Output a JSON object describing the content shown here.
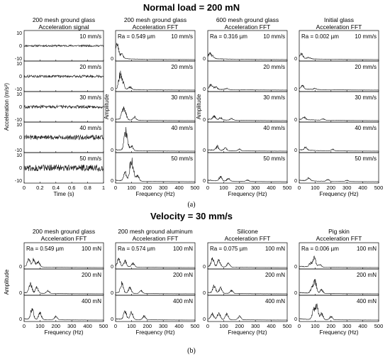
{
  "figure": {
    "part_a": {
      "heading": "Normal load = 200 mN",
      "caption": "(a)",
      "columns": [
        {
          "title1": "200 mesh ground glass",
          "title2": "Acceleration signal"
        },
        {
          "title1": "200 mesh ground glass",
          "title2": "Acceleration FFT",
          "ra": "Ra = 0.549 µm"
        },
        {
          "title1": "600 mesh ground glass",
          "title2": "Acceleration FFT",
          "ra": "Ra = 0.316 µm"
        },
        {
          "title1": "Initial glass",
          "title2": "Acceleration FFT",
          "ra": "Ra = 0.002 µm"
        }
      ],
      "row_labels": [
        "10 mm/s",
        "20 mm/s",
        "30 mm/s",
        "40 mm/s",
        "50 mm/s"
      ],
      "ylabel_signal": "Acceleration (m/s²)",
      "ylabel_fft": "Amplitude",
      "xlabel_signal": "Time (s)",
      "xlabel_fft": "Frequency (Hz)"
    },
    "part_b": {
      "heading": "Velocity = 30 mm/s",
      "caption": "(b)",
      "columns": [
        {
          "title1": "200 mesh ground glass",
          "title2": "Acceleration FFT",
          "ra": "Ra = 0.549 µm"
        },
        {
          "title1": "200 mesh ground aluminum",
          "title2": "Acceleration FFT",
          "ra": "Ra = 0.574 µm"
        },
        {
          "title1": "Silicone",
          "title2": "Acceleration FFT",
          "ra": "Ra = 0.075 µm"
        },
        {
          "title1": "Pig skin",
          "title2": "Acceleration FFT",
          "ra": "Ra = 0.006 µm"
        }
      ],
      "row_labels": [
        "100 mN",
        "200 mN",
        "400 mN"
      ],
      "ylabel_fft": "Amplitude",
      "xlabel_fft": "Frequency (Hz)"
    }
  },
  "chart_data": [
    {
      "type": "line",
      "panel": "a-signal",
      "xlabel": "Time (s)",
      "ylabel": "Acceleration (m/s²)",
      "xlim": [
        0,
        1
      ],
      "ylim": [
        -10,
        10
      ],
      "x_ticks": [
        "0",
        "0.2",
        "0.4",
        "0.6",
        "0.8",
        "1"
      ],
      "y_ticks": [
        "10",
        "0",
        "-10"
      ],
      "series": [
        {
          "name": "10 mm/s",
          "amplitude": 0.6
        },
        {
          "name": "20 mm/s",
          "amplitude": 0.8
        },
        {
          "name": "30 mm/s",
          "amplitude": 1.0
        },
        {
          "name": "40 mm/s",
          "amplitude": 1.6
        },
        {
          "name": "50 mm/s",
          "amplitude": 2.2
        }
      ]
    },
    {
      "type": "line",
      "panel": "a-fft",
      "xlabel": "Frequency (Hz)",
      "ylabel": "Amplitude",
      "xlim": [
        0,
        500
      ],
      "x_ticks": [
        "0",
        "100",
        "200",
        "300",
        "400",
        "500"
      ],
      "columns": [
        {
          "material": "200 mesh ground glass",
          "series": [
            {
              "name": "10 mm/s",
              "peaks": [
                [
                  5,
                  0.5
                ],
                [
                  15,
                  0.32
                ],
                [
                  40,
                  0.18
                ]
              ]
            },
            {
              "name": "20 mm/s",
              "peaks": [
                [
                  28,
                  0.62
                ],
                [
                  45,
                  0.3
                ],
                [
                  90,
                  0.12
                ]
              ]
            },
            {
              "name": "30 mm/s",
              "peaks": [
                [
                  45,
                  0.4
                ],
                [
                  60,
                  0.32
                ],
                [
                  120,
                  0.14
                ]
              ]
            },
            {
              "name": "40 mm/s",
              "peaks": [
                [
                  60,
                  0.55
                ],
                [
                  70,
                  0.45
                ],
                [
                  100,
                  0.22
                ]
              ]
            },
            {
              "name": "50 mm/s",
              "peaks": [
                [
                  95,
                  0.72
                ],
                [
                  110,
                  0.55
                ],
                [
                  60,
                  0.38
                ],
                [
                  140,
                  0.25
                ]
              ]
            }
          ]
        },
        {
          "material": "600 mesh ground glass",
          "series": [
            {
              "name": "10 mm/s",
              "peaks": [
                [
                  10,
                  0.2
                ],
                [
                  30,
                  0.12
                ]
              ]
            },
            {
              "name": "20 mm/s",
              "peaks": [
                [
                  20,
                  0.2
                ],
                [
                  50,
                  0.1
                ],
                [
                  120,
                  0.06
                ]
              ]
            },
            {
              "name": "30 mm/s",
              "peaks": [
                [
                  40,
                  0.16
                ],
                [
                  80,
                  0.1
                ],
                [
                  150,
                  0.07
                ]
              ]
            },
            {
              "name": "40 mm/s",
              "peaks": [
                [
                  60,
                  0.18
                ],
                [
                  110,
                  0.12
                ],
                [
                  200,
                  0.08
                ]
              ]
            },
            {
              "name": "50 mm/s",
              "peaks": [
                [
                  80,
                  0.18
                ],
                [
                  130,
                  0.12
                ],
                [
                  250,
                  0.06
                ]
              ]
            }
          ]
        },
        {
          "material": "Initial glass",
          "series": [
            {
              "name": "10 mm/s",
              "peaks": [
                [
                  15,
                  0.2
                ],
                [
                  60,
                  0.06
                ]
              ]
            },
            {
              "name": "20 mm/s",
              "peaks": [
                [
                  20,
                  0.14
                ],
                [
                  100,
                  0.05
                ]
              ]
            },
            {
              "name": "30 mm/s",
              "peaks": [
                [
                  30,
                  0.12
                ],
                [
                  150,
                  0.06
                ]
              ]
            },
            {
              "name": "40 mm/s",
              "peaks": [
                [
                  40,
                  0.12
                ],
                [
                  210,
                  0.07
                ]
              ]
            },
            {
              "name": "50 mm/s",
              "peaks": [
                [
                  60,
                  0.12
                ],
                [
                  180,
                  0.08
                ],
                [
                  300,
                  0.05
                ]
              ]
            }
          ]
        }
      ]
    },
    {
      "type": "line",
      "panel": "b-fft",
      "xlabel": "Frequency (Hz)",
      "ylabel": "Amplitude",
      "xlim": [
        0,
        500
      ],
      "x_ticks": [
        "0",
        "100",
        "200",
        "300",
        "400",
        "500"
      ],
      "columns": [
        {
          "material": "200 mesh ground glass",
          "series": [
            {
              "name": "100 mN",
              "peaks": [
                [
                  30,
                  0.45
                ],
                [
                  60,
                  0.38
                ],
                [
                  90,
                  0.25
                ]
              ]
            },
            {
              "name": "200 mN",
              "peaks": [
                [
                  40,
                  0.5
                ],
                [
                  80,
                  0.3
                ],
                [
                  150,
                  0.15
                ]
              ]
            },
            {
              "name": "400 mN",
              "peaks": [
                [
                  50,
                  0.55
                ],
                [
                  100,
                  0.35
                ],
                [
                  200,
                  0.18
                ]
              ]
            }
          ]
        },
        {
          "material": "200 mesh ground aluminum",
          "series": [
            {
              "name": "100 mN",
              "peaks": [
                [
                  20,
                  0.4
                ],
                [
                  60,
                  0.3
                ],
                [
                  110,
                  0.2
                ]
              ]
            },
            {
              "name": "200 mN",
              "peaks": [
                [
                  40,
                  0.5
                ],
                [
                  90,
                  0.3
                ],
                [
                  160,
                  0.15
                ]
              ]
            },
            {
              "name": "400 mN",
              "peaks": [
                [
                  60,
                  0.45
                ],
                [
                  100,
                  0.35
                ],
                [
                  180,
                  0.2
                ]
              ]
            }
          ]
        },
        {
          "material": "Silicone",
          "series": [
            {
              "name": "100 mN",
              "peaks": [
                [
                  30,
                  0.4
                ],
                [
                  70,
                  0.35
                ],
                [
                  130,
                  0.2
                ]
              ]
            },
            {
              "name": "200 mN",
              "peaks": [
                [
                  40,
                  0.38
                ],
                [
                  80,
                  0.28
                ],
                [
                  150,
                  0.15
                ]
              ]
            },
            {
              "name": "400 mN",
              "peaks": [
                [
                  30,
                  0.3
                ],
                [
                  70,
                  0.35
                ],
                [
                  120,
                  0.3
                ],
                [
                  200,
                  0.18
                ]
              ]
            }
          ]
        },
        {
          "material": "Pig skin",
          "series": [
            {
              "name": "100 mN",
              "peaks": [
                [
                  95,
                  0.5
                ],
                [
                  70,
                  0.2
                ],
                [
                  130,
                  0.15
                ]
              ]
            },
            {
              "name": "200 mN",
              "peaks": [
                [
                  100,
                  0.62
                ],
                [
                  80,
                  0.3
                ],
                [
                  140,
                  0.2
                ]
              ]
            },
            {
              "name": "400 mN",
              "peaks": [
                [
                  110,
                  0.7
                ],
                [
                  90,
                  0.45
                ],
                [
                  140,
                  0.35
                ],
                [
                  200,
                  0.18
                ]
              ]
            }
          ]
        }
      ]
    }
  ]
}
